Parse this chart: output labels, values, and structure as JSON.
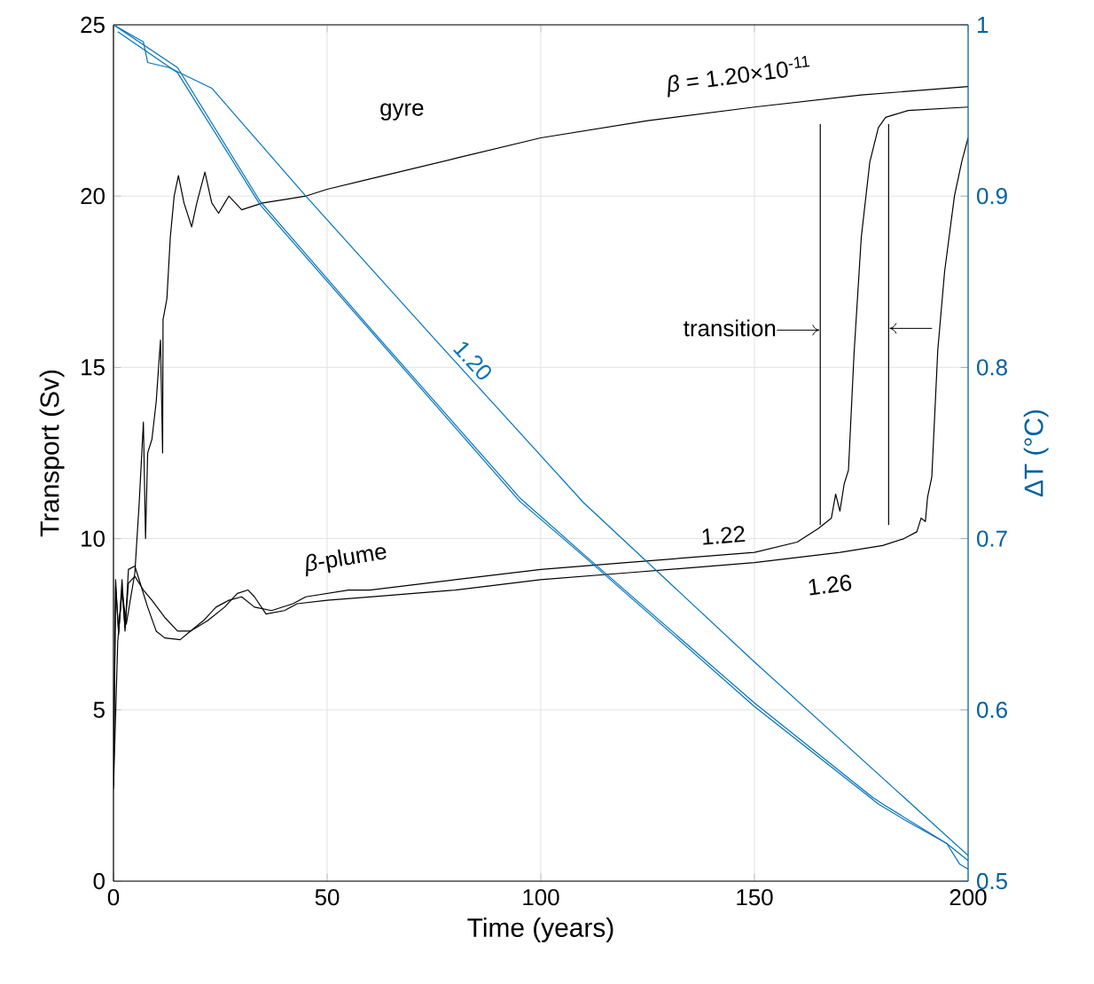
{
  "chart_data": {
    "type": "line",
    "xlabel": "Time (years)",
    "ylabel": "Transport (Sv)",
    "y2label": "ΔT (°C)",
    "xlim": [
      0,
      200
    ],
    "xticks": [
      0,
      50,
      100,
      150,
      200
    ],
    "ylim": [
      0,
      25
    ],
    "yticks": [
      0,
      5,
      10,
      15,
      20,
      25
    ],
    "y2lim": [
      0.5,
      1
    ],
    "y2ticks": [
      0.5,
      0.6,
      0.7,
      0.8,
      0.9,
      1
    ],
    "grid": true,
    "series": [
      {
        "color": "#000000",
        "x": [
          0,
          1,
          2,
          3,
          5,
          6,
          7,
          7.5,
          8,
          9,
          10,
          11,
          11.5,
          11.6,
          12.5,
          13.3,
          14.2,
          15.2,
          16.5,
          18.3,
          19.5,
          21.4,
          23,
          24.6,
          27,
          30,
          35,
          40,
          45,
          50,
          60,
          80,
          100,
          125,
          150,
          175,
          200
        ],
        "values": [
          2.7,
          7,
          8.5,
          7.5,
          9,
          11,
          13.4,
          10,
          12.5,
          12.9,
          14,
          15.8,
          12.5,
          16.4,
          17,
          18.8,
          20,
          20.6,
          19.8,
          19.1,
          19.8,
          20.7,
          19.8,
          19.5,
          20,
          19.6,
          19.8,
          19.9,
          20,
          20.2,
          20.5,
          21.1,
          21.7,
          22.2,
          22.6,
          22.95,
          23.2
        ]
      },
      {
        "color": "#000000",
        "x": [
          0,
          0.5,
          1.2,
          2,
          2.7,
          3.5,
          5,
          6,
          8,
          10,
          12,
          15.6,
          18,
          21,
          24,
          27,
          30,
          33,
          37,
          42,
          45,
          55,
          60,
          80,
          100,
          120,
          150,
          160,
          165,
          168,
          169,
          170,
          171,
          172,
          173.3,
          175,
          177,
          179,
          180.7,
          182,
          186,
          200
        ],
        "values": [
          2.8,
          8.8,
          7.2,
          8.8,
          7.3,
          9.1,
          9.2,
          8.8,
          8,
          7.3,
          7.1,
          7.05,
          7.3,
          7.6,
          8,
          8.2,
          8.3,
          8,
          7.9,
          8.1,
          8.3,
          8.5,
          8.5,
          8.8,
          9.1,
          9.3,
          9.6,
          9.9,
          10.3,
          10.6,
          11.3,
          10.8,
          11.6,
          12,
          15.4,
          18.8,
          21,
          22,
          22.3,
          22.35,
          22.5,
          22.6
        ]
      },
      {
        "color": "#000000",
        "x": [
          0,
          0.5,
          1.2,
          2,
          2.7,
          3.5,
          5,
          7,
          9,
          12,
          15,
          18,
          22,
          26,
          29,
          31.5,
          33,
          35.7,
          40,
          43,
          50,
          60,
          80,
          100,
          120,
          150,
          170,
          180,
          185,
          188,
          189,
          190,
          190.5,
          191.5,
          192.9,
          194.5,
          196.8,
          198.5,
          200
        ],
        "values": [
          2.8,
          8.6,
          7.3,
          8.5,
          7.4,
          8.7,
          8.9,
          8.5,
          8.2,
          7.7,
          7.3,
          7.3,
          7.6,
          8,
          8.4,
          8.5,
          8.3,
          7.8,
          7.9,
          8.1,
          8.2,
          8.3,
          8.5,
          8.8,
          9,
          9.3,
          9.6,
          9.8,
          10,
          10.2,
          10.6,
          10.5,
          11.2,
          11.8,
          15.5,
          17.8,
          20,
          21,
          21.7
        ]
      },
      {
        "color": "#000000",
        "x": [
          165.4,
          165.4
        ],
        "values": [
          10.4,
          22.1
        ]
      },
      {
        "color": "#000000",
        "x": [
          181.4,
          181.4
        ],
        "values": [
          10.4,
          22.1
        ]
      },
      {
        "color": "#0072bd",
        "axis": "y2",
        "x": [
          0,
          7,
          8,
          13,
          23,
          45,
          75,
          110,
          150,
          200
        ],
        "values": [
          1,
          0.99,
          0.978,
          0.975,
          0.963,
          0.9,
          0.817,
          0.721,
          0.628,
          0.515
        ]
      },
      {
        "color": "#0072bd",
        "axis": "y2",
        "x": [
          0,
          15,
          34.3,
          60,
          95,
          110.4,
          150,
          177.6,
          180,
          195,
          200
        ],
        "values": [
          1,
          0.975,
          0.897,
          0.823,
          0.724,
          0.69,
          0.604,
          0.549,
          0.545,
          0.522,
          0.512
        ]
      },
      {
        "color": "#0072bd",
        "axis": "y2",
        "x": [
          1,
          15,
          34.3,
          95,
          110.4,
          150,
          176,
          179,
          185,
          195,
          198,
          200
        ],
        "values": [
          0.996,
          0.972,
          0.895,
          0.722,
          0.689,
          0.602,
          0.551,
          0.545,
          0.536,
          0.522,
          0.51,
          0.507
        ]
      }
    ],
    "annotations": [
      "gyre",
      "*β* = 1.20×10$^{-11}$",
      "transition",
      "1.20",
      "*β*-plume",
      "1.22",
      "1.26"
    ]
  }
}
